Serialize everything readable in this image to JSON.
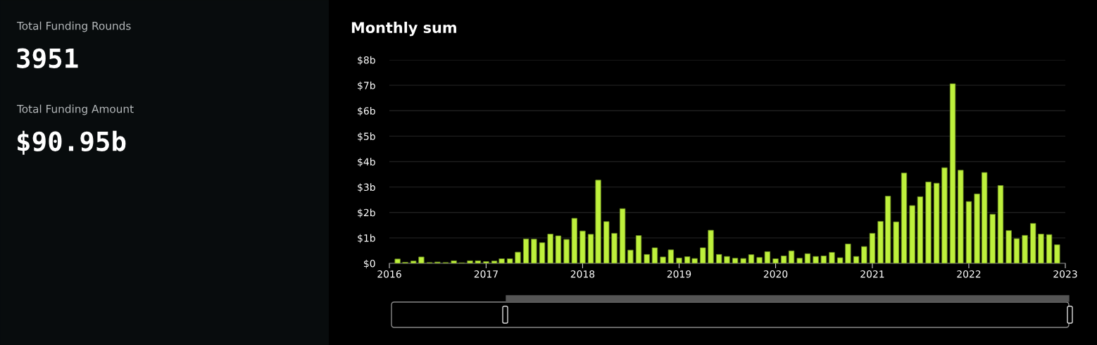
{
  "chart_data": [
    {
      "type": "other",
      "annotations": [
        "Total Funding Rounds",
        "3951",
        "Total Funding Amount",
        "$90.95b"
      ]
    },
    {
      "type": "bar",
      "title": "Monthly sum",
      "color": "#bef03c",
      "grid": "y",
      "x": [
        "2016-02",
        "2016-03",
        "2016-04",
        "2016-05",
        "2016-06",
        "2016-07",
        "2016-08",
        "2016-09",
        "2016-10",
        "2016-11",
        "2016-12",
        "2017-01",
        "2017-02",
        "2017-03",
        "2017-04",
        "2017-05",
        "2017-06",
        "2017-07",
        "2017-08",
        "2017-09",
        "2017-10",
        "2017-11",
        "2017-12",
        "2018-01",
        "2018-02",
        "2018-03",
        "2018-04",
        "2018-05",
        "2018-06",
        "2018-07",
        "2018-08",
        "2018-09",
        "2018-10",
        "2018-11",
        "2018-12",
        "2019-01",
        "2019-02",
        "2019-03",
        "2019-04",
        "2019-05",
        "2019-06",
        "2019-07",
        "2019-08",
        "2019-09",
        "2019-10",
        "2019-11",
        "2019-12",
        "2020-01",
        "2020-02",
        "2020-03",
        "2020-04",
        "2020-05",
        "2020-06",
        "2020-07",
        "2020-08",
        "2020-09",
        "2020-10",
        "2020-11",
        "2020-12",
        "2021-01",
        "2021-02",
        "2021-03",
        "2021-04",
        "2021-05",
        "2021-06",
        "2021-07",
        "2021-08",
        "2021-09",
        "2021-10",
        "2021-11",
        "2021-12",
        "2022-01",
        "2022-02",
        "2022-03",
        "2022-04",
        "2022-05",
        "2022-06",
        "2022-07",
        "2022-08",
        "2022-09",
        "2022-10",
        "2022-11",
        "2022-12"
      ],
      "values": [
        0.17,
        0.04,
        0.09,
        0.25,
        0.03,
        0.05,
        0.03,
        0.1,
        0.02,
        0.1,
        0.1,
        0.07,
        0.09,
        0.18,
        0.18,
        0.44,
        0.96,
        0.95,
        0.81,
        1.15,
        1.08,
        0.94,
        1.77,
        1.27,
        1.14,
        3.27,
        1.64,
        1.18,
        2.15,
        0.52,
        1.09,
        0.35,
        0.61,
        0.25,
        0.53,
        0.21,
        0.26,
        0.19,
        0.61,
        1.3,
        0.35,
        0.27,
        0.2,
        0.19,
        0.34,
        0.23,
        0.46,
        0.18,
        0.29,
        0.49,
        0.2,
        0.38,
        0.27,
        0.29,
        0.43,
        0.22,
        0.76,
        0.27,
        0.66,
        1.18,
        1.65,
        2.64,
        1.63,
        3.55,
        2.27,
        2.62,
        3.2,
        3.15,
        3.76,
        7.06,
        3.66,
        2.43,
        2.73,
        3.57,
        1.93,
        3.06,
        1.29,
        0.97,
        1.1,
        1.57,
        1.15,
        1.13,
        0.73
      ],
      "xlim": [
        "2016",
        "2023"
      ],
      "xticks": [
        "2016",
        "2017",
        "2018",
        "2019",
        "2020",
        "2021",
        "2022",
        "2023"
      ],
      "ylim": [
        0,
        8
      ],
      "yticks": [
        {
          "value": 0,
          "label": "$0"
        },
        {
          "value": 1,
          "label": "$1b"
        },
        {
          "value": 2,
          "label": "$2b"
        },
        {
          "value": 3,
          "label": "$3b"
        },
        {
          "value": 4,
          "label": "$4b"
        },
        {
          "value": 5,
          "label": "$5b"
        },
        {
          "value": 6,
          "label": "$6b"
        },
        {
          "value": 7,
          "label": "$7b"
        },
        {
          "value": 8,
          "label": "$8b"
        }
      ]
    }
  ]
}
